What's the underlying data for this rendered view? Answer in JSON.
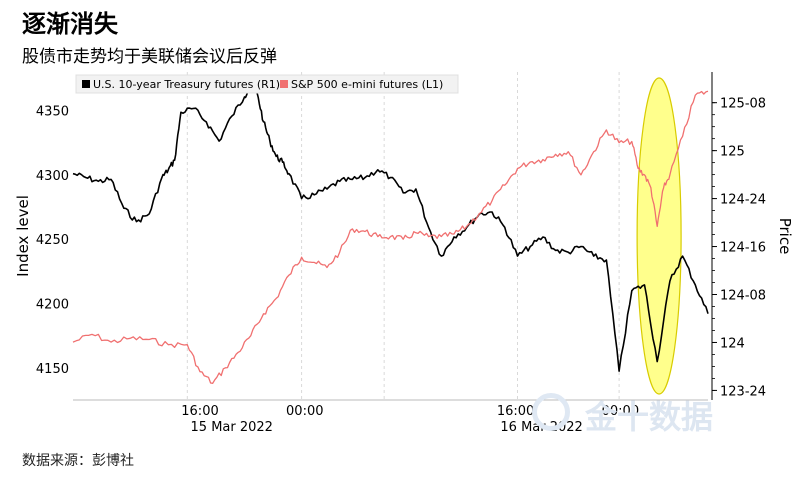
{
  "header": {
    "title": "逐渐消失",
    "subtitle": "股债市走势均于美联储会议后反弹"
  },
  "footer": {
    "source": "数据来源：彭博社"
  },
  "watermark": {
    "text": "金十数据"
  },
  "colors": {
    "treasury": "#000000",
    "sp500": "#f07070",
    "highlight": "#ffff66",
    "highlight_border": "#d8cc00"
  },
  "chart_data": {
    "type": "line",
    "xaxis": {
      "tick_labels": [
        "16:00",
        "00:00",
        "16:00",
        "00:00"
      ],
      "date_labels": [
        "15 Mar 2022",
        "16 Mar 2022"
      ]
    },
    "left_axis": {
      "label": "Index level",
      "ticks": [
        4150,
        4200,
        4250,
        4300,
        4350
      ],
      "ylim": [
        4125,
        4380
      ]
    },
    "right_axis": {
      "label": "Price",
      "ticks": [
        "123-24",
        "124",
        "124-08",
        "124-16",
        "124-24",
        "125",
        "125-08"
      ],
      "tick_values": [
        123.75,
        124.0,
        124.25,
        124.5,
        124.75,
        125.0,
        125.25
      ],
      "ylim": [
        123.7,
        125.41
      ]
    },
    "legend": {
      "placement": "top-left",
      "items": [
        "U.S. 10-year Treasury futures (R1)",
        "S&P 500 e-mini futures (L1)"
      ]
    },
    "series": [
      {
        "name": "U.S. 10-year Treasury futures (R1)",
        "axis": "right",
        "x": [
          0,
          2,
          4,
          6,
          8,
          10,
          12,
          14,
          15,
          16,
          17,
          19,
          21,
          23,
          25,
          27,
          28,
          29,
          30,
          31,
          32,
          33,
          34,
          36,
          38,
          40,
          42,
          44,
          46,
          48,
          50,
          52,
          54,
          56,
          58,
          60,
          62,
          64,
          66,
          68,
          70,
          72,
          74,
          76,
          78,
          80,
          82,
          84,
          86,
          88,
          90,
          92,
          94,
          96,
          98,
          100
        ],
        "values": [
          124.88,
          124.86,
          124.84,
          124.85,
          124.7,
          124.63,
          124.67,
          124.86,
          124.9,
          124.95,
          125.2,
          125.22,
          125.15,
          125.05,
          125.18,
          125.28,
          125.35,
          125.3,
          125.15,
          125.05,
          124.97,
          124.94,
          124.88,
          124.75,
          124.77,
          124.8,
          124.84,
          124.85,
          124.86,
          124.9,
          124.86,
          124.78,
          124.8,
          124.6,
          124.45,
          124.55,
          124.6,
          124.67,
          124.68,
          124.6,
          124.45,
          124.5,
          124.55,
          124.48,
          124.47,
          124.5,
          124.45,
          124.43,
          123.85,
          124.27,
          124.3,
          123.9,
          124.32,
          124.45,
          124.3,
          124.15
        ]
      },
      {
        "name": "S&P 500 e-mini futures (L1)",
        "axis": "left",
        "x": [
          0,
          3,
          6,
          9,
          12,
          15,
          18,
          20,
          22,
          24,
          26,
          28,
          30,
          32,
          34,
          36,
          38,
          40,
          42,
          44,
          46,
          48,
          50,
          52,
          54,
          56,
          58,
          60,
          62,
          64,
          66,
          68,
          70,
          72,
          74,
          76,
          78,
          80,
          82,
          84,
          86,
          88,
          89,
          90,
          91,
          92,
          93,
          94,
          96,
          98,
          100
        ],
        "values": [
          4170,
          4176,
          4170,
          4173,
          4172,
          4168,
          4168,
          4147,
          4138,
          4150,
          4162,
          4175,
          4192,
          4204,
          4222,
          4236,
          4232,
          4228,
          4240,
          4258,
          4256,
          4252,
          4252,
          4250,
          4255,
          4252,
          4252,
          4254,
          4260,
          4270,
          4280,
          4292,
          4305,
          4310,
          4312,
          4316,
          4318,
          4300,
          4318,
          4335,
          4325,
          4326,
          4305,
          4300,
          4290,
          4260,
          4290,
          4300,
          4330,
          4362,
          4365
        ]
      }
    ]
  }
}
